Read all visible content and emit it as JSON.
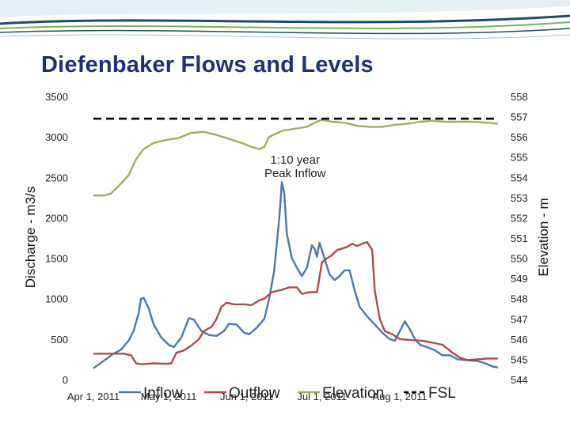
{
  "page": {
    "title": "Diefenbaker Flows and Levels"
  },
  "colors": {
    "title": "#1f2f7a",
    "inflow": "#4a78a8",
    "outflow": "#b04a4a",
    "elevation": "#98b35a",
    "fsl": "#000000",
    "banner_dark": "#1a4d6b",
    "banner_green": "#7ab648"
  },
  "chart_data": {
    "type": "line",
    "title": "Diefenbaker Flows and Levels",
    "ylabel": "Discharge - m3/s",
    "y2label": "Elevation - m",
    "ylim": [
      0,
      3500
    ],
    "y2lim": [
      544,
      558
    ],
    "xlim": [
      "2011-04-01",
      "2011-09-10"
    ],
    "yticks": [
      "0",
      "500",
      "1000",
      "1500",
      "2000",
      "2500",
      "3000",
      "3500"
    ],
    "y2ticks": [
      "544",
      "545",
      "546",
      "547",
      "548",
      "549",
      "550",
      "551",
      "552",
      "553",
      "554",
      "555",
      "556",
      "557",
      "558"
    ],
    "xticks": [
      {
        "date": "2011-04-01",
        "label": "Apr 1, 2011"
      },
      {
        "date": "2011-05-01",
        "label": "May 1, 2011"
      },
      {
        "date": "2011-06-01",
        "label": "Jun 1, 2011"
      },
      {
        "date": "2011-07-01",
        "label": "Jul 1, 2011"
      },
      {
        "date": "2011-08-01",
        "label": "Aug 1, 2011"
      }
    ],
    "annotations": [
      {
        "text_lines": [
          "1:10 year",
          "Peak Inflow"
        ],
        "date": "2011-06-02",
        "value": 2440
      }
    ],
    "legend_position": "bottom",
    "series": [
      {
        "name": "Inflow",
        "axis": "left",
        "style": "solid",
        "points": [
          [
            "2011-04-01",
            140
          ],
          [
            "2011-04-05",
            230
          ],
          [
            "2011-04-09",
            320
          ],
          [
            "2011-04-12",
            370
          ],
          [
            "2011-04-15",
            480
          ],
          [
            "2011-04-17",
            600
          ],
          [
            "2011-04-19",
            820
          ],
          [
            "2011-04-20",
            1000
          ],
          [
            "2011-04-21",
            1010
          ],
          [
            "2011-04-23",
            880
          ],
          [
            "2011-04-25",
            680
          ],
          [
            "2011-04-28",
            520
          ],
          [
            "2011-05-01",
            430
          ],
          [
            "2011-05-03",
            400
          ],
          [
            "2011-05-06",
            520
          ],
          [
            "2011-05-09",
            760
          ],
          [
            "2011-05-11",
            740
          ],
          [
            "2011-05-14",
            600
          ],
          [
            "2011-05-17",
            550
          ],
          [
            "2011-05-20",
            540
          ],
          [
            "2011-05-23",
            600
          ],
          [
            "2011-05-25",
            690
          ],
          [
            "2011-05-28",
            680
          ],
          [
            "2011-05-31",
            580
          ],
          [
            "2011-06-02",
            560
          ],
          [
            "2011-06-05",
            640
          ],
          [
            "2011-06-08",
            750
          ],
          [
            "2011-06-10",
            1000
          ],
          [
            "2011-06-12",
            1350
          ],
          [
            "2011-06-14",
            2000
          ],
          [
            "2011-06-15",
            2440
          ],
          [
            "2011-06-16",
            2300
          ],
          [
            "2011-06-17",
            1800
          ],
          [
            "2011-06-19",
            1500
          ],
          [
            "2011-06-21",
            1380
          ],
          [
            "2011-06-23",
            1280
          ],
          [
            "2011-06-25",
            1380
          ],
          [
            "2011-06-27",
            1660
          ],
          [
            "2011-06-28",
            1620
          ],
          [
            "2011-06-29",
            1520
          ],
          [
            "2011-06-30",
            1690
          ],
          [
            "2011-07-02",
            1500
          ],
          [
            "2011-07-04",
            1300
          ],
          [
            "2011-07-06",
            1230
          ],
          [
            "2011-07-08",
            1280
          ],
          [
            "2011-07-10",
            1350
          ],
          [
            "2011-07-12",
            1350
          ],
          [
            "2011-07-14",
            1100
          ],
          [
            "2011-07-16",
            900
          ],
          [
            "2011-07-19",
            780
          ],
          [
            "2011-07-22",
            680
          ],
          [
            "2011-07-25",
            580
          ],
          [
            "2011-07-28",
            500
          ],
          [
            "2011-07-30",
            480
          ],
          [
            "2011-08-01",
            600
          ],
          [
            "2011-08-03",
            720
          ],
          [
            "2011-08-05",
            620
          ],
          [
            "2011-08-07",
            500
          ],
          [
            "2011-08-09",
            430
          ],
          [
            "2011-08-12",
            400
          ],
          [
            "2011-08-15",
            360
          ],
          [
            "2011-08-18",
            300
          ],
          [
            "2011-08-21",
            300
          ],
          [
            "2011-08-24",
            250
          ],
          [
            "2011-08-28",
            240
          ],
          [
            "2011-09-01",
            230
          ],
          [
            "2011-09-04",
            200
          ],
          [
            "2011-09-07",
            160
          ],
          [
            "2011-09-09",
            150
          ]
        ]
      },
      {
        "name": "Outflow",
        "axis": "left",
        "style": "solid",
        "points": [
          [
            "2011-04-01",
            320
          ],
          [
            "2011-04-07",
            320
          ],
          [
            "2011-04-13",
            320
          ],
          [
            "2011-04-16",
            300
          ],
          [
            "2011-04-18",
            200
          ],
          [
            "2011-04-20",
            190
          ],
          [
            "2011-04-25",
            200
          ],
          [
            "2011-04-30",
            195
          ],
          [
            "2011-05-02",
            200
          ],
          [
            "2011-05-04",
            330
          ],
          [
            "2011-05-07",
            360
          ],
          [
            "2011-05-10",
            420
          ],
          [
            "2011-05-13",
            500
          ],
          [
            "2011-05-15",
            600
          ],
          [
            "2011-05-18",
            650
          ],
          [
            "2011-05-20",
            750
          ],
          [
            "2011-05-22",
            900
          ],
          [
            "2011-05-24",
            950
          ],
          [
            "2011-05-27",
            930
          ],
          [
            "2011-05-31",
            930
          ],
          [
            "2011-06-03",
            920
          ],
          [
            "2011-06-06",
            980
          ],
          [
            "2011-06-08",
            1000
          ],
          [
            "2011-06-11",
            1080
          ],
          [
            "2011-06-15",
            1110
          ],
          [
            "2011-06-18",
            1140
          ],
          [
            "2011-06-21",
            1140
          ],
          [
            "2011-06-23",
            1060
          ],
          [
            "2011-06-26",
            1080
          ],
          [
            "2011-06-29",
            1080
          ],
          [
            "2011-07-01",
            1450
          ],
          [
            "2011-07-03",
            1500
          ],
          [
            "2011-07-05",
            1540
          ],
          [
            "2011-07-07",
            1600
          ],
          [
            "2011-07-09",
            1620
          ],
          [
            "2011-07-11",
            1640
          ],
          [
            "2011-07-13",
            1680
          ],
          [
            "2011-07-15",
            1650
          ],
          [
            "2011-07-17",
            1680
          ],
          [
            "2011-07-19",
            1700
          ],
          [
            "2011-07-21",
            1600
          ],
          [
            "2011-07-22",
            1100
          ],
          [
            "2011-07-24",
            750
          ],
          [
            "2011-07-26",
            600
          ],
          [
            "2011-07-29",
            560
          ],
          [
            "2011-08-01",
            500
          ],
          [
            "2011-08-05",
            490
          ],
          [
            "2011-08-10",
            480
          ],
          [
            "2011-08-15",
            450
          ],
          [
            "2011-08-18",
            430
          ],
          [
            "2011-08-20",
            380
          ],
          [
            "2011-08-22",
            330
          ],
          [
            "2011-08-25",
            270
          ],
          [
            "2011-08-28",
            240
          ],
          [
            "2011-09-01",
            250
          ],
          [
            "2011-09-05",
            260
          ],
          [
            "2011-09-09",
            260
          ]
        ]
      },
      {
        "name": "Elevation",
        "axis": "right",
        "style": "solid",
        "points": [
          [
            "2011-04-01",
            553.1
          ],
          [
            "2011-04-05",
            553.1
          ],
          [
            "2011-04-08",
            553.2
          ],
          [
            "2011-04-12",
            553.7
          ],
          [
            "2011-04-15",
            554.1
          ],
          [
            "2011-04-18",
            554.9
          ],
          [
            "2011-04-21",
            555.4
          ],
          [
            "2011-04-25",
            555.7
          ],
          [
            "2011-04-30",
            555.85
          ],
          [
            "2011-05-05",
            555.95
          ],
          [
            "2011-05-10",
            556.2
          ],
          [
            "2011-05-15",
            556.25
          ],
          [
            "2011-05-20",
            556.1
          ],
          [
            "2011-05-25",
            555.9
          ],
          [
            "2011-05-30",
            555.7
          ],
          [
            "2011-06-03",
            555.5
          ],
          [
            "2011-06-06",
            555.4
          ],
          [
            "2011-06-08",
            555.5
          ],
          [
            "2011-06-10",
            556.0
          ],
          [
            "2011-06-15",
            556.3
          ],
          [
            "2011-06-20",
            556.4
          ],
          [
            "2011-06-25",
            556.5
          ],
          [
            "2011-06-28",
            556.7
          ],
          [
            "2011-07-01",
            556.85
          ],
          [
            "2011-07-05",
            556.75
          ],
          [
            "2011-07-10",
            556.7
          ],
          [
            "2011-07-15",
            556.55
          ],
          [
            "2011-07-20",
            556.5
          ],
          [
            "2011-07-25",
            556.5
          ],
          [
            "2011-07-30",
            556.6
          ],
          [
            "2011-08-04",
            556.65
          ],
          [
            "2011-08-09",
            556.75
          ],
          [
            "2011-08-14",
            556.8
          ],
          [
            "2011-08-19",
            556.75
          ],
          [
            "2011-08-24",
            556.75
          ],
          [
            "2011-08-29",
            556.75
          ],
          [
            "2011-09-03",
            556.72
          ],
          [
            "2011-09-09",
            556.65
          ]
        ]
      },
      {
        "name": "FSL",
        "axis": "right",
        "style": "dashed",
        "points": [
          [
            "2011-04-01",
            556.9
          ],
          [
            "2011-09-09",
            556.9
          ]
        ]
      }
    ]
  }
}
